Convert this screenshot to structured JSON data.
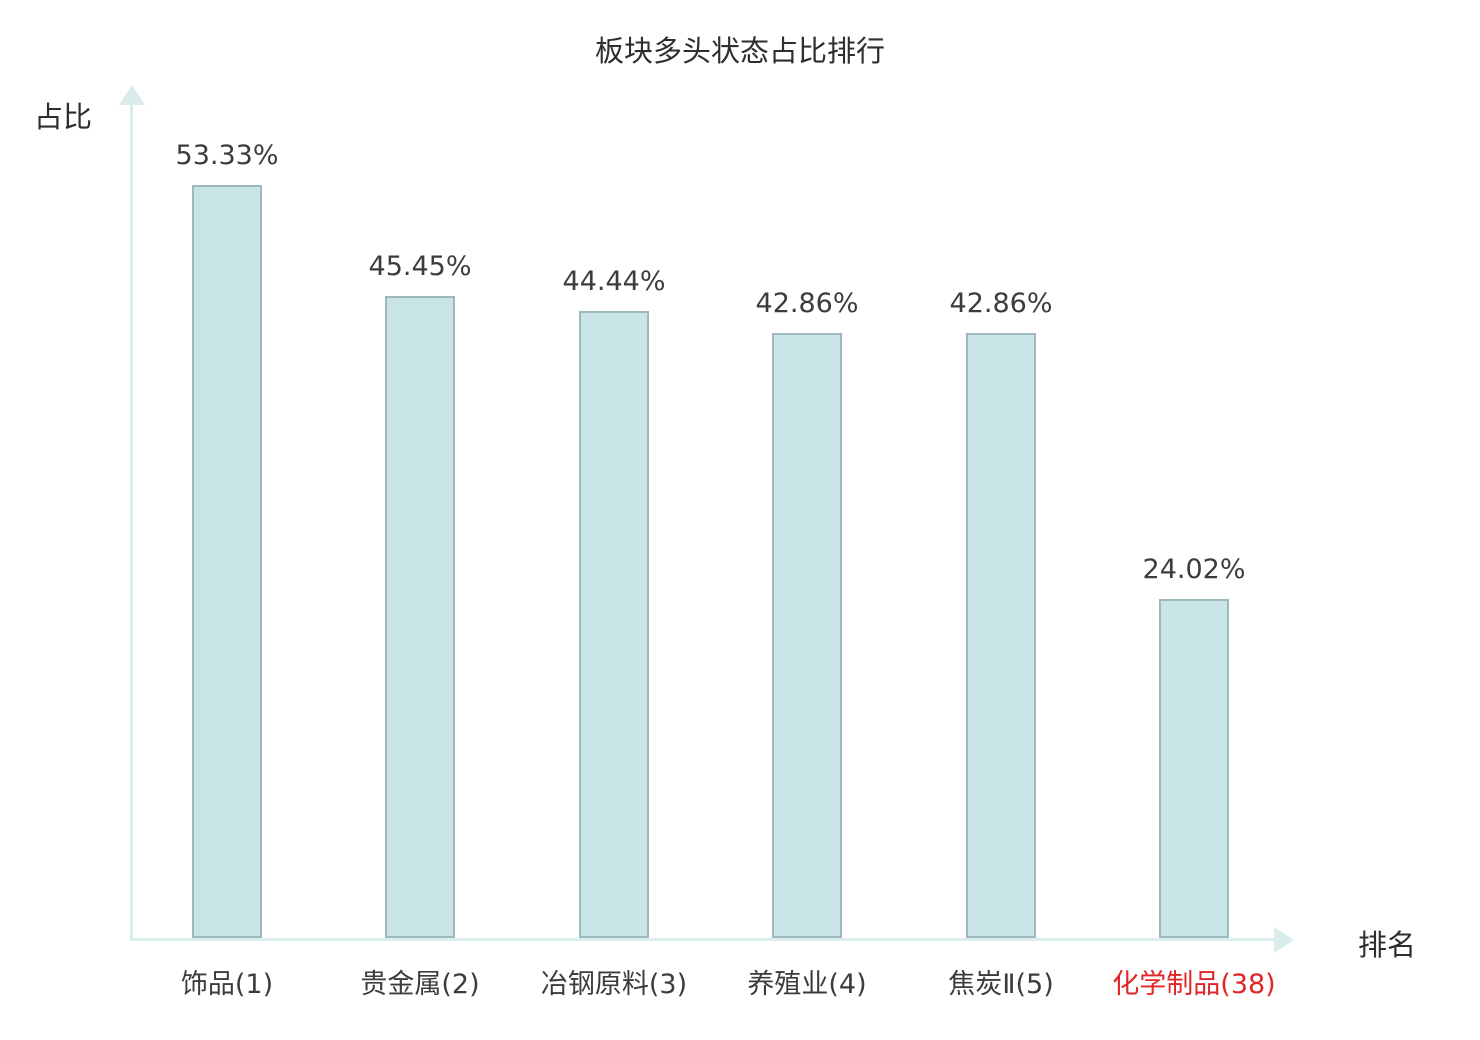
{
  "chart": {
    "title": "板块多头状态占比排行",
    "y_axis_label": "占比",
    "x_axis_label": "排名"
  },
  "colors": {
    "bar_fill": "#c9e4e7",
    "bar_border": "#9fb8bc",
    "axis": "#d9edec",
    "text": "#3c3c3c",
    "highlight_red": "#e02626"
  },
  "chart_data": {
    "type": "bar",
    "title": "板块多头状态占比排行",
    "xlabel": "排名",
    "ylabel": "占比",
    "categories": [
      "饰品(1)",
      "贵金属(2)",
      "冶钢原料(3)",
      "养殖业(4)",
      "焦炭Ⅱ(5)",
      "化学制品(38)"
    ],
    "values": [
      53.33,
      45.45,
      44.44,
      42.86,
      42.86,
      24.02
    ],
    "value_labels": [
      "53.33%",
      "45.45%",
      "44.44%",
      "42.86%",
      "42.86%",
      "24.02%"
    ],
    "category_label_colors": [
      "#3c3c3c",
      "#3c3c3c",
      "#3c3c3c",
      "#3c3c3c",
      "#3c3c3c",
      "#e02626"
    ],
    "ylim": [
      0,
      60
    ],
    "grid": false,
    "legend": null,
    "bar_color": "#c9e4e7"
  }
}
